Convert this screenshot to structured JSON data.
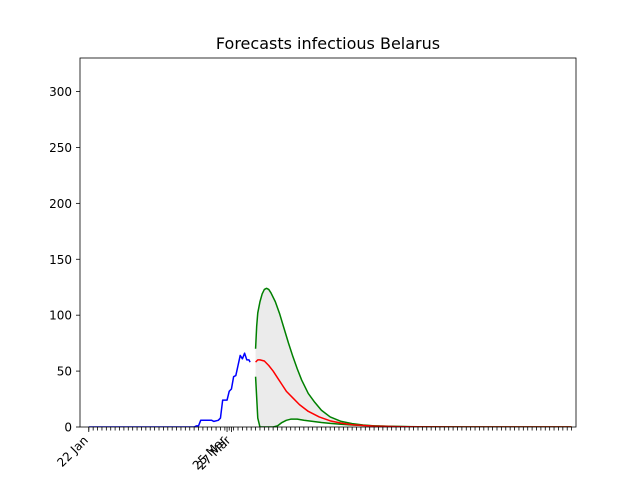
{
  "chart_data": {
    "type": "line",
    "title": "Forecasts infectious Belarus",
    "xlabel": "",
    "ylabel": "",
    "ylim": [
      0,
      330
    ],
    "yticks": [
      0,
      50,
      100,
      150,
      200,
      250,
      300
    ],
    "x_start_date": "2020-01-22",
    "x_range_days": [
      -4,
      222
    ],
    "xtick_labels": [
      {
        "day": 0,
        "label": "22 Jan"
      },
      {
        "day": 63,
        "label": "25 Mar"
      },
      {
        "day": 65,
        "label": "27 Mar"
      }
    ],
    "minor_tick_day_range": [
      0,
      220
    ],
    "grid": false,
    "series": [
      {
        "role": "observed",
        "color": "#0000ff",
        "points": [
          [
            0,
            0
          ],
          [
            48,
            0
          ],
          [
            49,
            1
          ],
          [
            50,
            1
          ],
          [
            51,
            6
          ],
          [
            54,
            6
          ],
          [
            56,
            6
          ],
          [
            57,
            5
          ],
          [
            59,
            6
          ],
          [
            60,
            8
          ],
          [
            61,
            24
          ],
          [
            62,
            24
          ],
          [
            63,
            24
          ],
          [
            64,
            32
          ],
          [
            65,
            34
          ],
          [
            66,
            45
          ],
          [
            67,
            46
          ],
          [
            68,
            55
          ],
          [
            69,
            64
          ],
          [
            70,
            61
          ],
          [
            71,
            66
          ],
          [
            72,
            60
          ],
          [
            73,
            60
          ],
          [
            73.5,
            58
          ]
        ]
      },
      {
        "role": "forecast-mean",
        "color": "#ff0000",
        "points": [
          [
            76,
            58
          ],
          [
            77,
            60
          ],
          [
            78,
            60
          ],
          [
            80,
            59
          ],
          [
            82,
            55
          ],
          [
            84,
            50
          ],
          [
            86,
            44
          ],
          [
            88,
            38
          ],
          [
            90,
            32
          ],
          [
            93,
            26
          ],
          [
            96,
            20
          ],
          [
            100,
            14
          ],
          [
            105,
            9
          ],
          [
            110,
            5.5
          ],
          [
            115,
            3.5
          ],
          [
            120,
            2
          ],
          [
            130,
            0.8
          ],
          [
            140,
            0.3
          ],
          [
            150,
            0.1
          ],
          [
            170,
            0
          ],
          [
            220,
            0
          ]
        ]
      },
      {
        "role": "forecast-upper",
        "color": "#008000",
        "points": [
          [
            76,
            70
          ],
          [
            76.5,
            90
          ],
          [
            77,
            102
          ],
          [
            78,
            112
          ],
          [
            79,
            119
          ],
          [
            80,
            123
          ],
          [
            81,
            124
          ],
          [
            82,
            123
          ],
          [
            83,
            120
          ],
          [
            85,
            112
          ],
          [
            87,
            101
          ],
          [
            89,
            88
          ],
          [
            91,
            75
          ],
          [
            93,
            63
          ],
          [
            95,
            52
          ],
          [
            97,
            42
          ],
          [
            100,
            30
          ],
          [
            103,
            22
          ],
          [
            106,
            15
          ],
          [
            110,
            9
          ],
          [
            115,
            5
          ],
          [
            120,
            3
          ],
          [
            125,
            1.8
          ],
          [
            130,
            1
          ],
          [
            140,
            0.4
          ],
          [
            150,
            0.1
          ],
          [
            170,
            0
          ],
          [
            220,
            0
          ]
        ]
      },
      {
        "role": "forecast-lower",
        "color": "#008000",
        "points": [
          [
            76,
            45
          ],
          [
            77,
            8
          ],
          [
            78,
            0
          ],
          [
            80,
            0
          ],
          [
            84,
            0
          ],
          [
            86,
            1
          ],
          [
            88,
            4
          ],
          [
            90,
            6
          ],
          [
            92,
            7
          ],
          [
            95,
            7
          ],
          [
            98,
            6
          ],
          [
            102,
            5
          ],
          [
            106,
            4
          ],
          [
            110,
            3.2
          ],
          [
            115,
            2.5
          ],
          [
            120,
            1.8
          ],
          [
            130,
            1
          ],
          [
            140,
            0.5
          ],
          [
            150,
            0.2
          ],
          [
            170,
            0
          ],
          [
            220,
            0
          ]
        ]
      }
    ],
    "band_fill_color": "#ebebeb",
    "frame_color": "#000000"
  }
}
